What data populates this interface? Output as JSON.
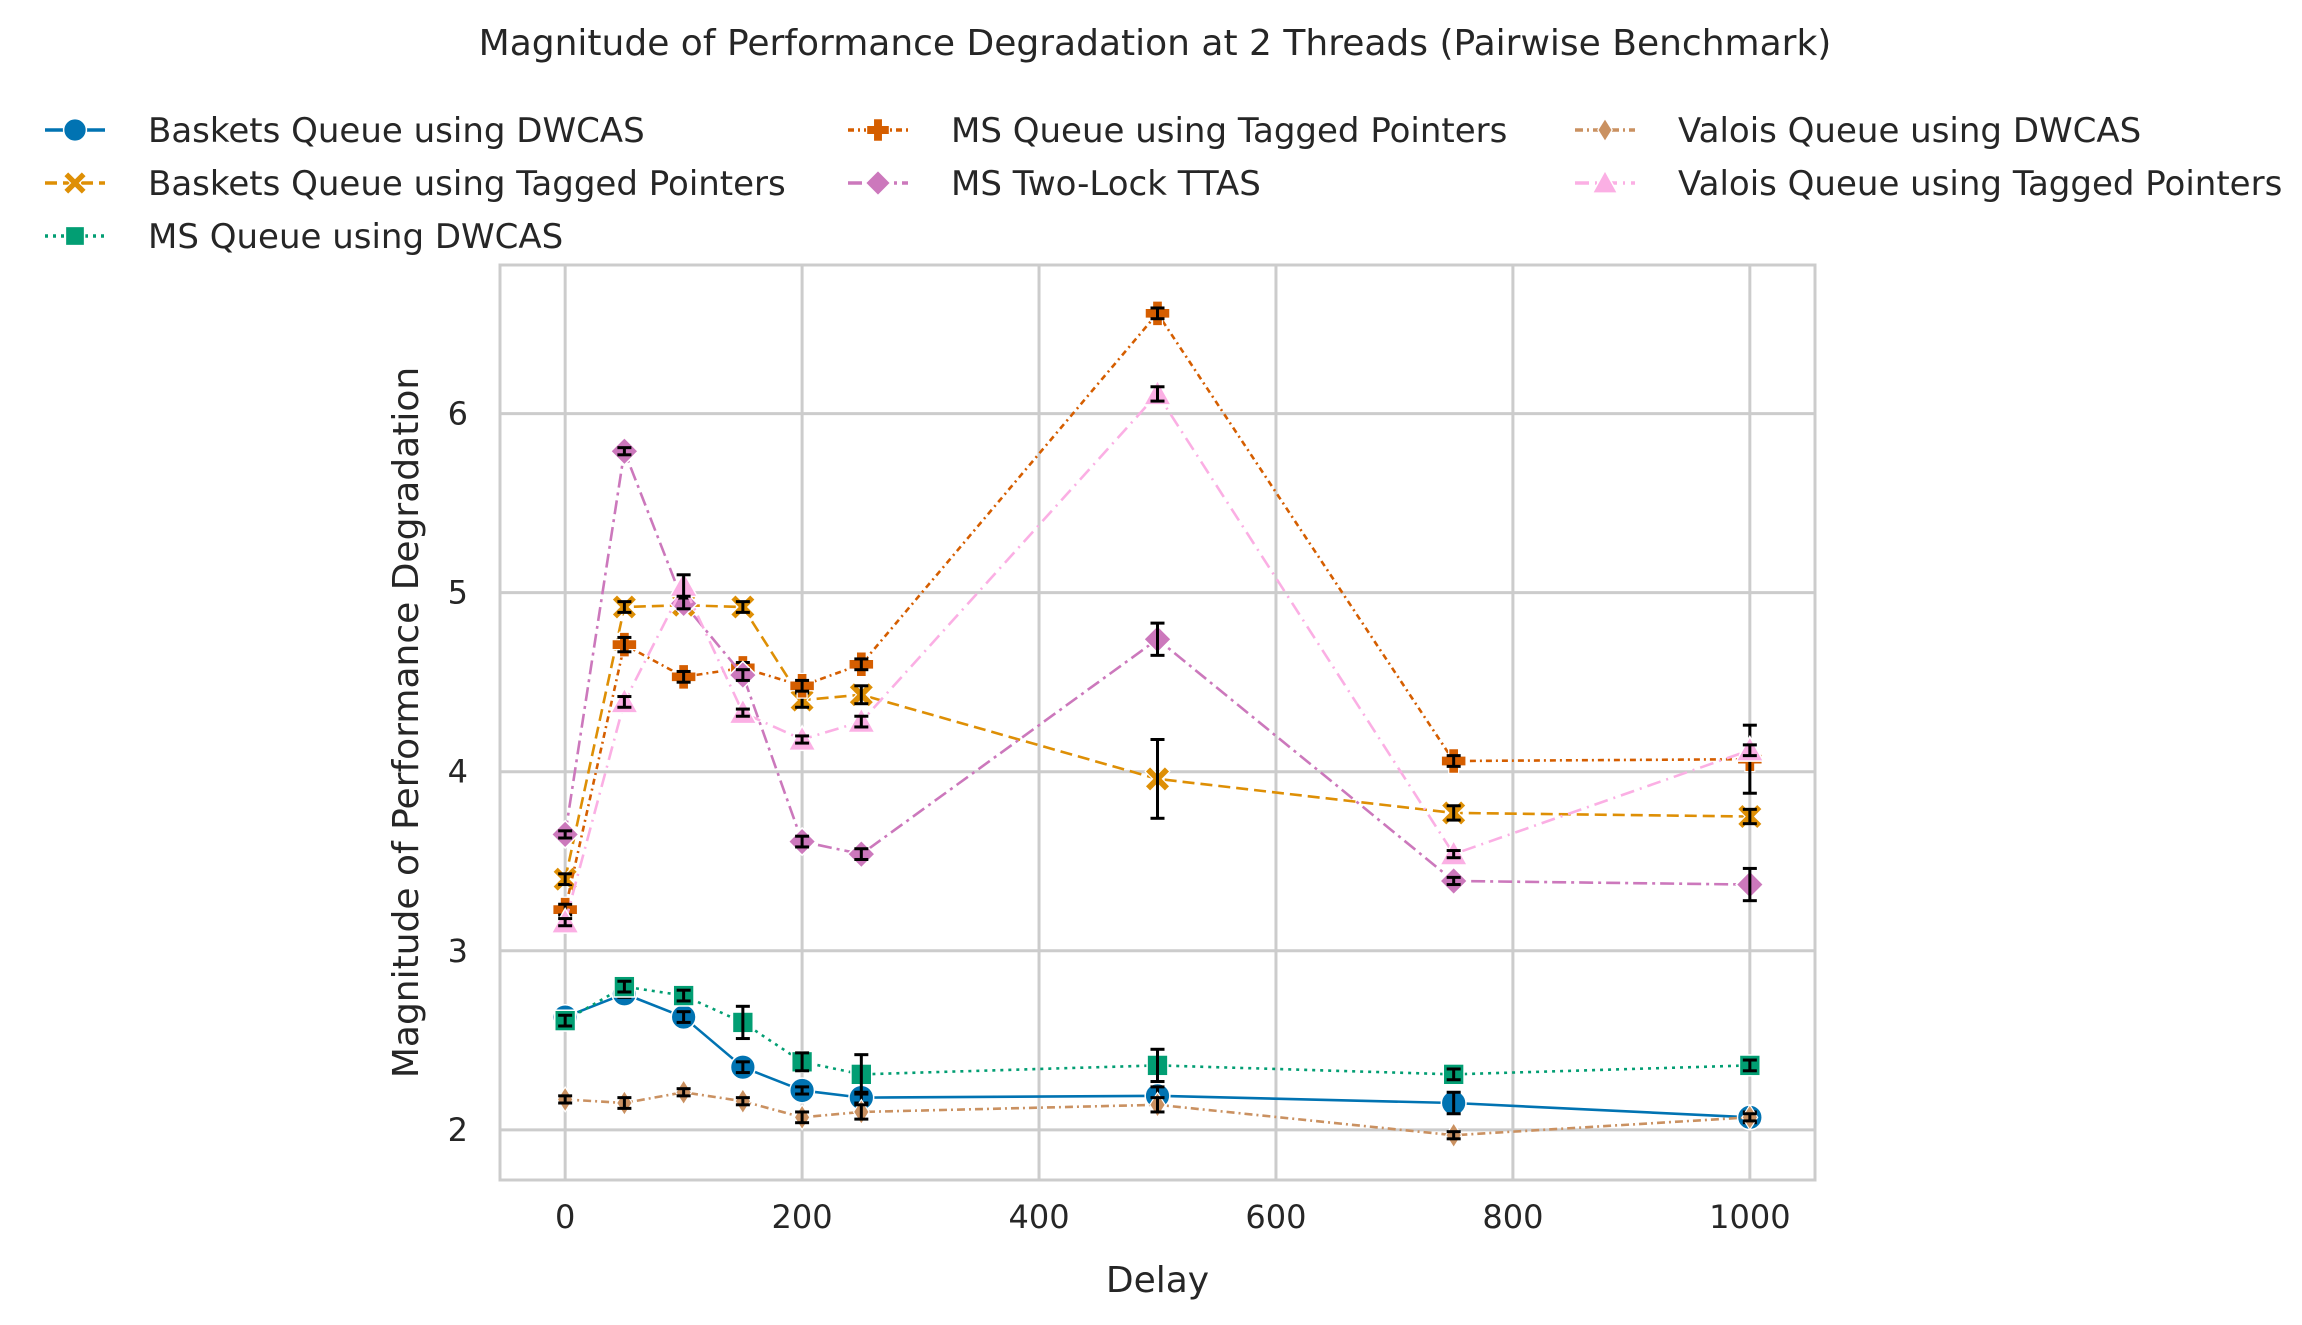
{
  "chart_data": {
    "type": "line",
    "title": "Magnitude of Performance Degradation at 2 Threads (Pairwise Benchmark)",
    "xlabel": "Delay",
    "ylabel": "Magnitude of Performance Degradation",
    "xlim": [
      -55,
      1055
    ],
    "ylim": [
      1.72,
      6.83
    ],
    "xticks": [
      0,
      200,
      400,
      600,
      800,
      1000
    ],
    "yticks": [
      2,
      3,
      4,
      5,
      6
    ],
    "xtick_labels": [
      "0",
      "200",
      "400",
      "600",
      "800",
      "1000"
    ],
    "ytick_labels": [
      "2",
      "3",
      "4",
      "5",
      "6"
    ],
    "grid": true,
    "legend_position": "top",
    "x": [
      0,
      50,
      100,
      150,
      200,
      250,
      500,
      750,
      1000
    ],
    "series": [
      {
        "name": "Baskets Queue using DWCAS",
        "color": "#0173b2",
        "dash": "",
        "marker": "circle",
        "values": [
          2.63,
          2.76,
          2.63,
          2.35,
          2.22,
          2.18,
          2.19,
          2.15,
          2.07
        ],
        "errors": [
          0.02,
          0.02,
          0.03,
          0.03,
          0.02,
          0.03,
          0.05,
          0.06,
          0.03
        ]
      },
      {
        "name": "Baskets Queue using Tagged Pointers",
        "color": "#de8f05",
        "dash": "12,6",
        "marker": "x",
        "values": [
          3.4,
          4.92,
          4.93,
          4.92,
          4.4,
          4.43,
          3.96,
          3.77,
          3.75
        ],
        "errors": [
          0.03,
          0.03,
          0.03,
          0.03,
          0.04,
          0.05,
          0.22,
          0.04,
          0.04
        ]
      },
      {
        "name": "MS Queue using DWCAS",
        "color": "#029e73",
        "dash": "3,5",
        "marker": "square",
        "values": [
          2.61,
          2.8,
          2.75,
          2.6,
          2.38,
          2.31,
          2.36,
          2.31,
          2.36
        ],
        "errors": [
          0.03,
          0.03,
          0.03,
          0.09,
          0.05,
          0.11,
          0.09,
          0.03,
          0.03
        ]
      },
      {
        "name": "MS Queue using Tagged Pointers",
        "color": "#d55e00",
        "dash": "6,4,2,4",
        "marker": "plus",
        "values": [
          3.23,
          4.71,
          4.53,
          4.58,
          4.48,
          4.6,
          6.56,
          4.06,
          4.07
        ],
        "errors": [
          0.03,
          0.04,
          0.03,
          0.03,
          0.03,
          0.03,
          0.03,
          0.03,
          0.19
        ]
      },
      {
        "name": "MS Two-Lock TTAS",
        "color": "#cc78bc",
        "dash": "14,5,3,5",
        "marker": "diamond",
        "values": [
          3.65,
          5.79,
          4.94,
          4.54,
          3.61,
          3.54,
          4.74,
          3.39,
          3.37
        ],
        "errors": [
          0.02,
          0.02,
          0.03,
          0.03,
          0.03,
          0.03,
          0.09,
          0.02,
          0.09
        ]
      },
      {
        "name": "Valois Queue using DWCAS",
        "color": "#ca9161",
        "dash": "8,4,2,4",
        "marker": "thin_diamond",
        "values": [
          2.17,
          2.15,
          2.21,
          2.16,
          2.07,
          2.1,
          2.14,
          1.97,
          2.07
        ],
        "errors": [
          0.02,
          0.03,
          0.02,
          0.02,
          0.03,
          0.04,
          0.04,
          0.02,
          0.02
        ]
      },
      {
        "name": "Valois Queue using Tagged Pointers",
        "color": "#fbafe4",
        "dash": "14,6,2,6",
        "marker": "triangle",
        "values": [
          3.16,
          4.39,
          5.04,
          4.33,
          4.18,
          4.28,
          6.11,
          3.54,
          4.12
        ],
        "errors": [
          0.02,
          0.03,
          0.06,
          0.02,
          0.02,
          0.03,
          0.04,
          0.02,
          0.03
        ]
      }
    ]
  }
}
